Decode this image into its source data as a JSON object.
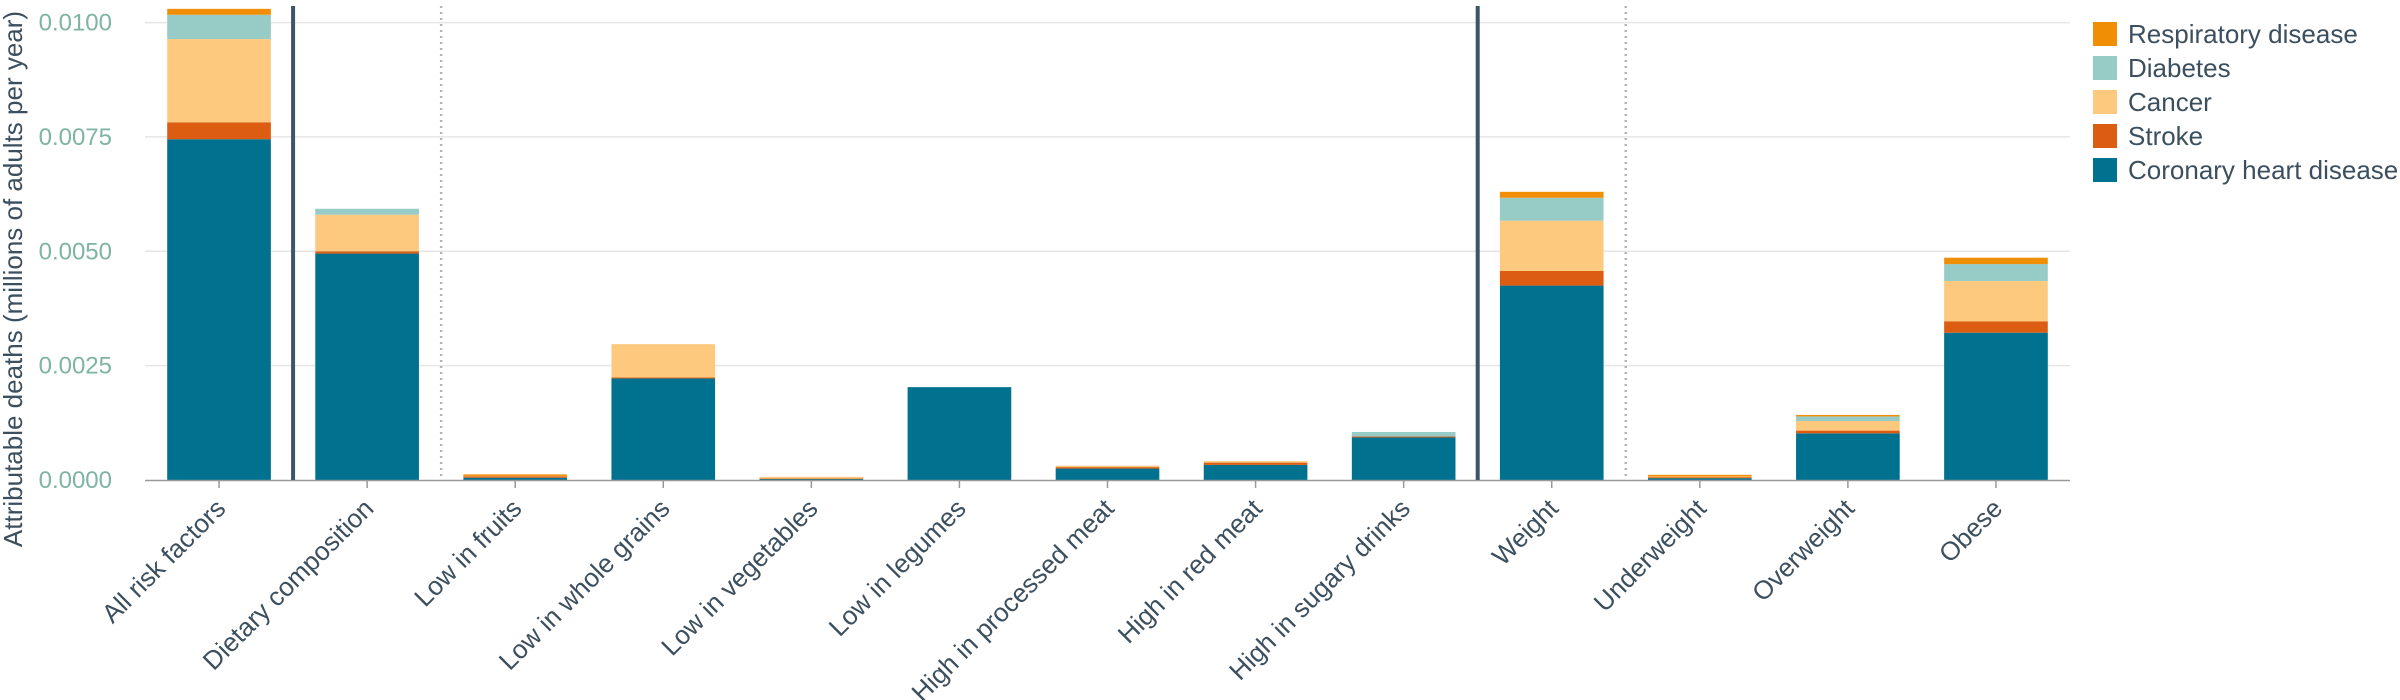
{
  "chart_data": {
    "type": "bar",
    "stacked": true,
    "ylabel": "Attributable deaths (millions of adults per year)",
    "xlabel": "",
    "ylim": [
      0,
      0.0101
    ],
    "yticks": [
      "0.0000",
      "0.0025",
      "0.0050",
      "0.0075",
      "0.0100"
    ],
    "grid": true,
    "legend_position": "top-right",
    "categories": [
      "All risk factors",
      "Dietary composition",
      "Low in fruits",
      "Low in whole grains",
      "Low in vegetables",
      "Low in legumes",
      "High in processed meat",
      "High in red meat",
      "High in sugary drinks",
      "Weight",
      "Underweight",
      "Overweight",
      "Obese"
    ],
    "series": [
      {
        "name": "Coronary heart disease",
        "color": "#00718f",
        "values": [
          0.00745,
          0.00495,
          5e-05,
          0.00222,
          2e-05,
          0.00203,
          0.00025,
          0.00033,
          0.00093,
          0.00425,
          4e-05,
          0.00102,
          0.00322
        ]
      },
      {
        "name": "Stroke",
        "color": "#dc5c11",
        "values": [
          0.00037,
          5e-05,
          3e-05,
          2e-05,
          1e-05,
          0.0,
          3e-05,
          5e-05,
          2e-05,
          0.00032,
          2e-05,
          6e-05,
          0.00025
        ]
      },
      {
        "name": "Cancer",
        "color": "#fdc97f",
        "values": [
          0.00182,
          0.0008,
          1e-05,
          0.00073,
          4e-05,
          0.0,
          1e-05,
          1e-05,
          0.0,
          0.0011,
          2e-05,
          0.00021,
          0.00088
        ]
      },
      {
        "name": "Diabetes",
        "color": "#96cbc6",
        "values": [
          0.00053,
          0.00013,
          0.0,
          0.0,
          0.0,
          0.0,
          0.0,
          0.0,
          0.0001,
          0.0005,
          0.0,
          0.0001,
          0.00037
        ]
      },
      {
        "name": "Respiratory disease",
        "color": "#f08f06",
        "values": [
          0.00013,
          0.0,
          1e-05,
          0.0,
          0.0,
          0.0,
          0.0,
          0.0,
          0.0,
          0.00013,
          1e-05,
          2e-05,
          0.00014
        ]
      }
    ],
    "separators": [
      {
        "after_index": 0,
        "style": "solid"
      },
      {
        "after_index": 1,
        "style": "dotted"
      },
      {
        "after_index": 8,
        "style": "solid"
      },
      {
        "after_index": 9,
        "style": "dotted"
      }
    ]
  }
}
